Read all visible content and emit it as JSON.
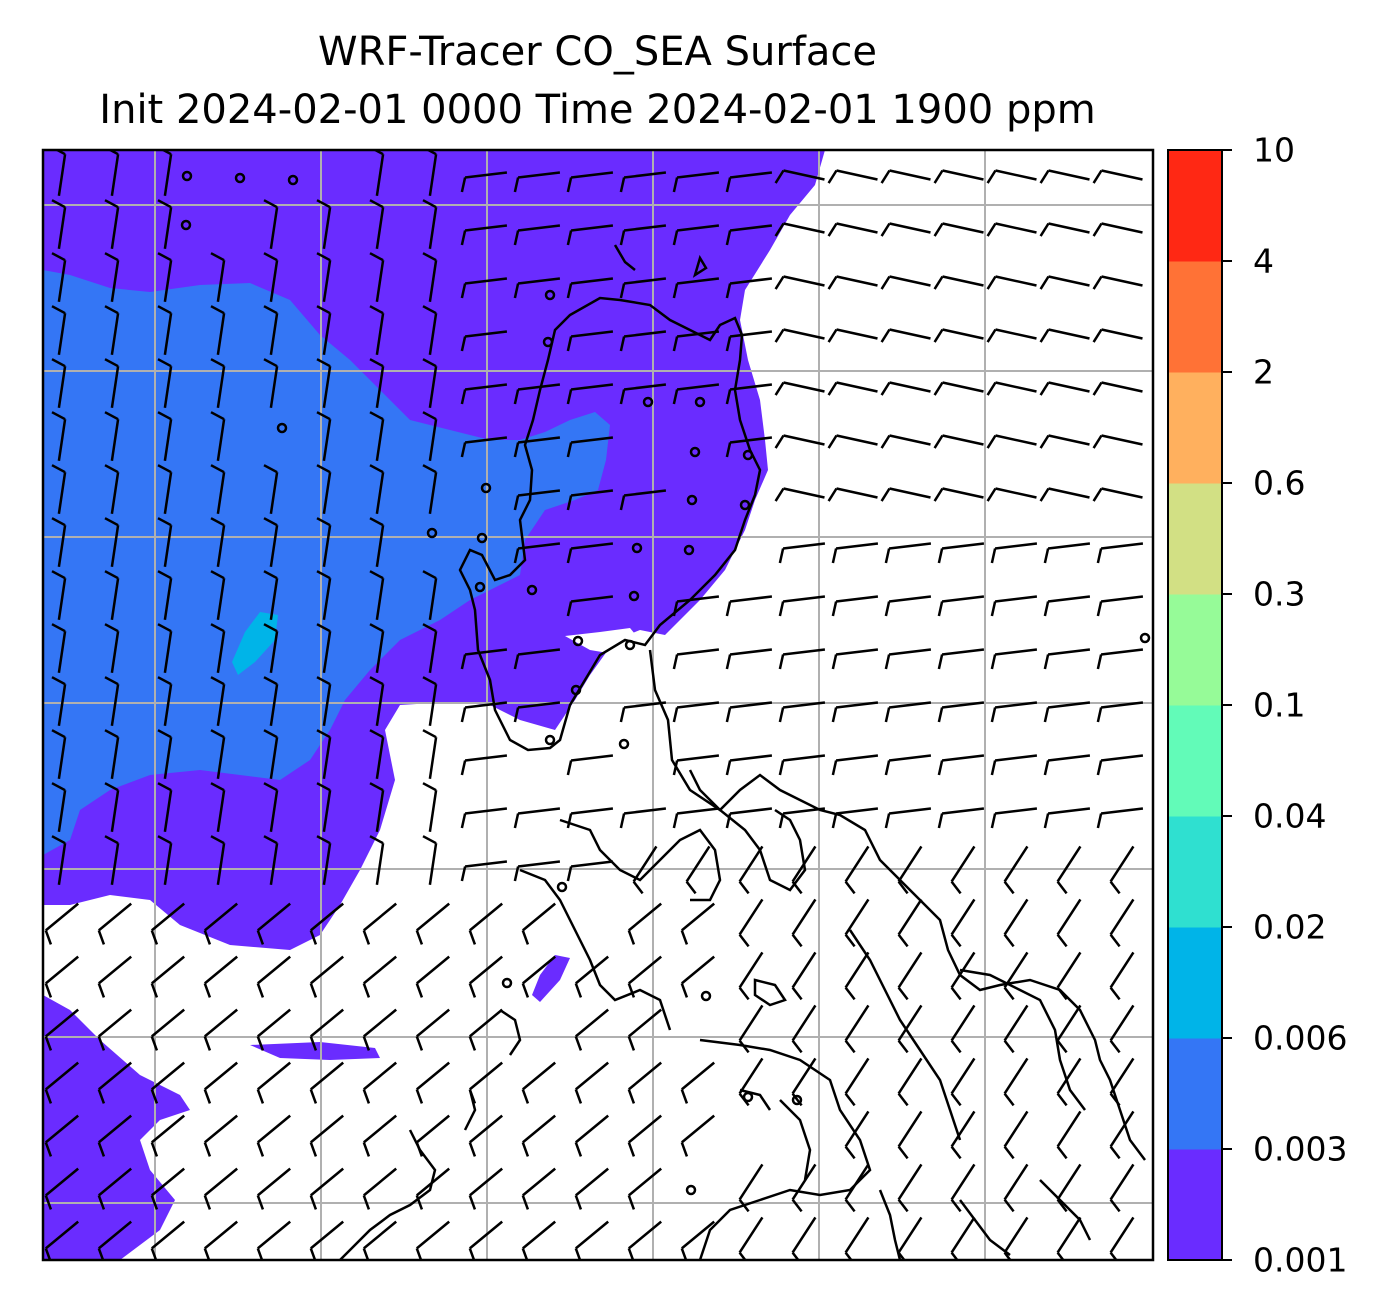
{
  "title": {
    "line1": "WRF-Tracer CO_SEA Surface",
    "line2": "Init 2024-02-01 0000 Time 2024-02-01 1900 ppm"
  },
  "colorbar": {
    "levels": [
      "0.001",
      "0.003",
      "0.006",
      "0.02",
      "0.04",
      "0.1",
      "0.3",
      "0.6",
      "2",
      "4",
      "10"
    ],
    "colors": [
      "#6a2cff",
      "#3476f5",
      "#00b4e8",
      "#2fe0d0",
      "#62fbb8",
      "#96fb98",
      "#d2e084",
      "#ffb05e",
      "#ff7236",
      "#ff2814"
    ]
  },
  "map": {
    "fill_colors": {
      "band_0_001": "#6a2cff",
      "band_0_003": "#3476f5",
      "band_0_006": "#00b4e8"
    }
  }
}
